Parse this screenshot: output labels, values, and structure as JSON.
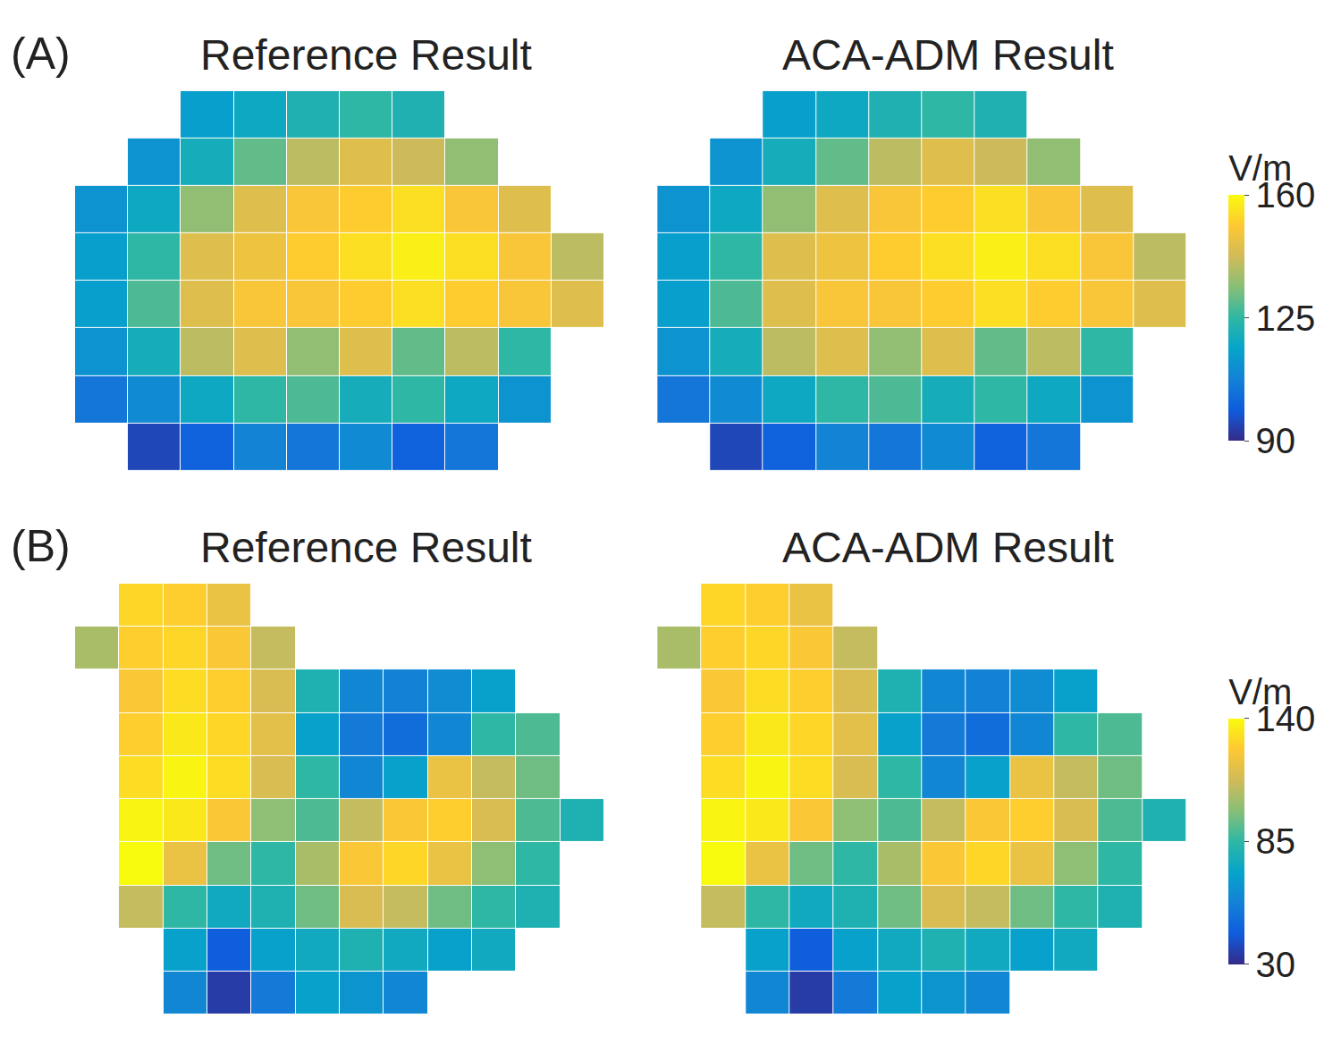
{
  "chart_data": [
    {
      "type": "heatmap",
      "label": "(A)",
      "tick_labels": false,
      "colorbar": {
        "title": "V/m",
        "range": [
          90,
          160
        ],
        "ticks": [
          90,
          125,
          160
        ]
      },
      "panels": [
        {
          "title": "Reference Result",
          "z": [
            [
              null,
              null,
              115,
              118,
              122,
              125,
              122,
              null,
              null,
              null
            ],
            [
              null,
              112,
              120,
              130,
              140,
              145,
              142,
              135,
              null,
              null
            ],
            [
              112,
              118,
              135,
              145,
              150,
              152,
              155,
              150,
              145,
              null
            ],
            [
              115,
              125,
              145,
              148,
              152,
              155,
              158,
              155,
              150,
              140
            ],
            [
              115,
              128,
              145,
              150,
              150,
              152,
              155,
              152,
              150,
              145
            ],
            [
              112,
              120,
              140,
              145,
              135,
              145,
              130,
              140,
              125,
              null
            ],
            [
              105,
              110,
              118,
              125,
              128,
              120,
              125,
              118,
              112,
              null
            ],
            [
              null,
              95,
              100,
              108,
              105,
              110,
              100,
              105,
              null,
              null
            ]
          ]
        },
        {
          "title": "ACA-ADM Result",
          "z": [
            [
              null,
              null,
              115,
              118,
              122,
              125,
              122,
              null,
              null,
              null
            ],
            [
              null,
              112,
              120,
              130,
              140,
              145,
              142,
              135,
              null,
              null
            ],
            [
              112,
              118,
              135,
              145,
              150,
              152,
              155,
              150,
              145,
              null
            ],
            [
              115,
              125,
              145,
              148,
              152,
              155,
              158,
              155,
              150,
              140
            ],
            [
              115,
              128,
              145,
              150,
              150,
              152,
              155,
              152,
              150,
              145
            ],
            [
              112,
              120,
              140,
              145,
              135,
              145,
              130,
              140,
              125,
              null
            ],
            [
              105,
              110,
              118,
              125,
              128,
              120,
              125,
              118,
              112,
              null
            ],
            [
              null,
              95,
              100,
              108,
              105,
              110,
              100,
              105,
              null,
              null
            ]
          ]
        }
      ]
    },
    {
      "type": "heatmap",
      "label": "(B)",
      "tick_labels": false,
      "colorbar": {
        "title": "V/m",
        "range": [
          30,
          140
        ],
        "ticks": [
          30,
          85,
          140
        ]
      },
      "panels": [
        {
          "title": "Reference Result",
          "z": [
            [
              null,
              130,
              128,
              120,
              null,
              null,
              null,
              null,
              null,
              null,
              null,
              null
            ],
            [
              105,
              128,
              130,
              125,
              110,
              null,
              null,
              null,
              null,
              null,
              null,
              null
            ],
            [
              null,
              125,
              132,
              128,
              115,
              80,
              60,
              58,
              62,
              70,
              null,
              null
            ],
            [
              null,
              128,
              135,
              130,
              118,
              70,
              55,
              50,
              60,
              85,
              90,
              null
            ],
            [
              null,
              132,
              138,
              132,
              115,
              85,
              60,
              70,
              120,
              110,
              95,
              null
            ],
            [
              null,
              138,
              135,
              125,
              100,
              90,
              110,
              125,
              128,
              115,
              90,
              80
            ],
            [
              null,
              140,
              120,
              95,
              85,
              105,
              125,
              130,
              120,
              100,
              85,
              null
            ],
            [
              null,
              110,
              85,
              75,
              80,
              95,
              115,
              110,
              95,
              85,
              80,
              null
            ],
            [
              null,
              null,
              70,
              45,
              70,
              75,
              80,
              75,
              70,
              75,
              null,
              null
            ],
            [
              null,
              null,
              60,
              35,
              55,
              70,
              65,
              60,
              null,
              null,
              null,
              null
            ]
          ]
        },
        {
          "title": "ACA-ADM Result",
          "z": [
            [
              null,
              130,
              128,
              120,
              null,
              null,
              null,
              null,
              null,
              null,
              null,
              null
            ],
            [
              105,
              128,
              130,
              125,
              110,
              null,
              null,
              null,
              null,
              null,
              null,
              null
            ],
            [
              null,
              125,
              132,
              128,
              115,
              80,
              60,
              58,
              62,
              70,
              null,
              null
            ],
            [
              null,
              128,
              135,
              130,
              118,
              70,
              55,
              50,
              60,
              85,
              90,
              null
            ],
            [
              null,
              132,
              138,
              132,
              115,
              85,
              60,
              70,
              120,
              110,
              95,
              null
            ],
            [
              null,
              138,
              135,
              125,
              100,
              90,
              110,
              125,
              128,
              115,
              90,
              80
            ],
            [
              null,
              140,
              120,
              95,
              85,
              105,
              125,
              130,
              120,
              100,
              85,
              null
            ],
            [
              null,
              110,
              85,
              75,
              80,
              95,
              115,
              110,
              95,
              85,
              80,
              null
            ],
            [
              null,
              null,
              70,
              45,
              70,
              75,
              80,
              75,
              70,
              75,
              null,
              null
            ],
            [
              null,
              null,
              60,
              35,
              55,
              70,
              65,
              60,
              null,
              null,
              null,
              null
            ]
          ]
        }
      ]
    }
  ]
}
